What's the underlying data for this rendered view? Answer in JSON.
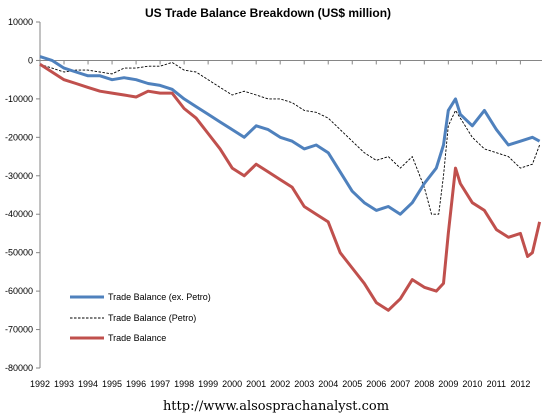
{
  "chart_data": {
    "type": "line",
    "title": "US Trade Balance Breakdown (US$ million)",
    "xlabel": "",
    "ylabel": "",
    "ylim": [
      -80000,
      10000
    ],
    "yticks": [
      10000,
      0,
      -10000,
      -20000,
      -30000,
      -40000,
      -50000,
      -60000,
      -70000,
      -80000
    ],
    "ytick_labels": [
      "10000",
      "0",
      "-10000",
      "-20000",
      "-30000",
      "-40000",
      "-50000",
      "-60000",
      "-70000",
      "-80000"
    ],
    "xlim": [
      1992,
      2012.9
    ],
    "xticks": [
      1992,
      1993,
      1994,
      1995,
      1996,
      1997,
      1998,
      1999,
      2000,
      2001,
      2002,
      2003,
      2004,
      2005,
      2006,
      2007,
      2008,
      2009,
      2010,
      2011,
      2012
    ],
    "xtick_labels": [
      "1992",
      "1993",
      "1994",
      "1995",
      "1996",
      "1997",
      "1998",
      "1999",
      "2000",
      "2001",
      "2002",
      "2003",
      "2004",
      "2005",
      "2006",
      "2007",
      "2008",
      "2009",
      "2010",
      "2011",
      "2012"
    ],
    "grid": false,
    "legend_position": "bottom-left",
    "series": [
      {
        "name": "Trade Balance (ex. Petro)",
        "color": "#4f81bd",
        "style": "solid",
        "x": [
          1992.0,
          1992.5,
          1993.0,
          1993.5,
          1994.0,
          1994.5,
          1995.0,
          1995.5,
          1996.0,
          1996.5,
          1997.0,
          1997.5,
          1998.0,
          1998.5,
          1999.0,
          1999.5,
          2000.0,
          2000.5,
          2001.0,
          2001.5,
          2002.0,
          2002.5,
          2003.0,
          2003.5,
          2004.0,
          2004.5,
          2005.0,
          2005.5,
          2006.0,
          2006.5,
          2007.0,
          2007.5,
          2008.0,
          2008.5,
          2008.8,
          2009.0,
          2009.3,
          2009.5,
          2010.0,
          2010.5,
          2011.0,
          2011.5,
          2012.0,
          2012.5,
          2012.8
        ],
        "y": [
          1000,
          0,
          -2000,
          -3000,
          -4000,
          -4000,
          -5000,
          -4500,
          -5000,
          -6000,
          -6500,
          -7500,
          -10000,
          -12000,
          -14000,
          -16000,
          -18000,
          -20000,
          -17000,
          -18000,
          -20000,
          -21000,
          -23000,
          -22000,
          -24000,
          -29000,
          -34000,
          -37000,
          -39000,
          -38000,
          -40000,
          -37000,
          -32000,
          -28000,
          -22000,
          -13000,
          -10000,
          -14000,
          -17000,
          -13000,
          -18000,
          -22000,
          -21000,
          -20000,
          -21000
        ]
      },
      {
        "name": "Trade Balance (Petro)",
        "color": "#000000",
        "style": "dashed",
        "x": [
          1992.0,
          1992.5,
          1993.0,
          1993.5,
          1994.0,
          1994.5,
          1995.0,
          1995.5,
          1996.0,
          1996.5,
          1997.0,
          1997.5,
          1998.0,
          1998.5,
          1999.0,
          1999.5,
          2000.0,
          2000.5,
          2001.0,
          2001.5,
          2002.0,
          2002.5,
          2003.0,
          2003.5,
          2004.0,
          2004.5,
          2005.0,
          2005.5,
          2006.0,
          2006.5,
          2007.0,
          2007.5,
          2008.0,
          2008.3,
          2008.6,
          2008.8,
          2009.0,
          2009.3,
          2009.5,
          2010.0,
          2010.5,
          2011.0,
          2011.5,
          2012.0,
          2012.5,
          2012.8
        ],
        "y": [
          -1000,
          -2000,
          -3000,
          -2500,
          -2500,
          -3000,
          -3500,
          -2000,
          -2000,
          -1500,
          -1500,
          -500,
          -2500,
          -3000,
          -5000,
          -7000,
          -9000,
          -8000,
          -9000,
          -10000,
          -10000,
          -11000,
          -13000,
          -13500,
          -15000,
          -18000,
          -21000,
          -24000,
          -26000,
          -25000,
          -28000,
          -25000,
          -33000,
          -40000,
          -40000,
          -30000,
          -17000,
          -13000,
          -15000,
          -20000,
          -23000,
          -24000,
          -25000,
          -28000,
          -27000,
          -22000
        ]
      },
      {
        "name": "Trade Balance",
        "color": "#c0504d",
        "style": "solid",
        "x": [
          1992.0,
          1992.5,
          1993.0,
          1993.5,
          1994.0,
          1994.5,
          1995.0,
          1995.5,
          1996.0,
          1996.5,
          1997.0,
          1997.5,
          1998.0,
          1998.5,
          1999.0,
          1999.5,
          2000.0,
          2000.5,
          2001.0,
          2001.5,
          2002.0,
          2002.5,
          2003.0,
          2003.5,
          2004.0,
          2004.5,
          2005.0,
          2005.5,
          2006.0,
          2006.5,
          2007.0,
          2007.5,
          2008.0,
          2008.5,
          2008.8,
          2009.0,
          2009.3,
          2009.5,
          2010.0,
          2010.5,
          2011.0,
          2011.5,
          2012.0,
          2012.3,
          2012.5,
          2012.8
        ],
        "y": [
          -1000,
          -3000,
          -5000,
          -6000,
          -7000,
          -8000,
          -8500,
          -9000,
          -9500,
          -8000,
          -8500,
          -8500,
          -12500,
          -15000,
          -19000,
          -23000,
          -28000,
          -30000,
          -27000,
          -29000,
          -31000,
          -33000,
          -38000,
          -40000,
          -42000,
          -50000,
          -54000,
          -58000,
          -63000,
          -65000,
          -62000,
          -57000,
          -59000,
          -60000,
          -58000,
          -45000,
          -28000,
          -32000,
          -37000,
          -39000,
          -44000,
          -46000,
          -45000,
          -51000,
          -50000,
          -42000
        ]
      }
    ]
  },
  "source_text": "http://www.alsosprachanalyst.com"
}
